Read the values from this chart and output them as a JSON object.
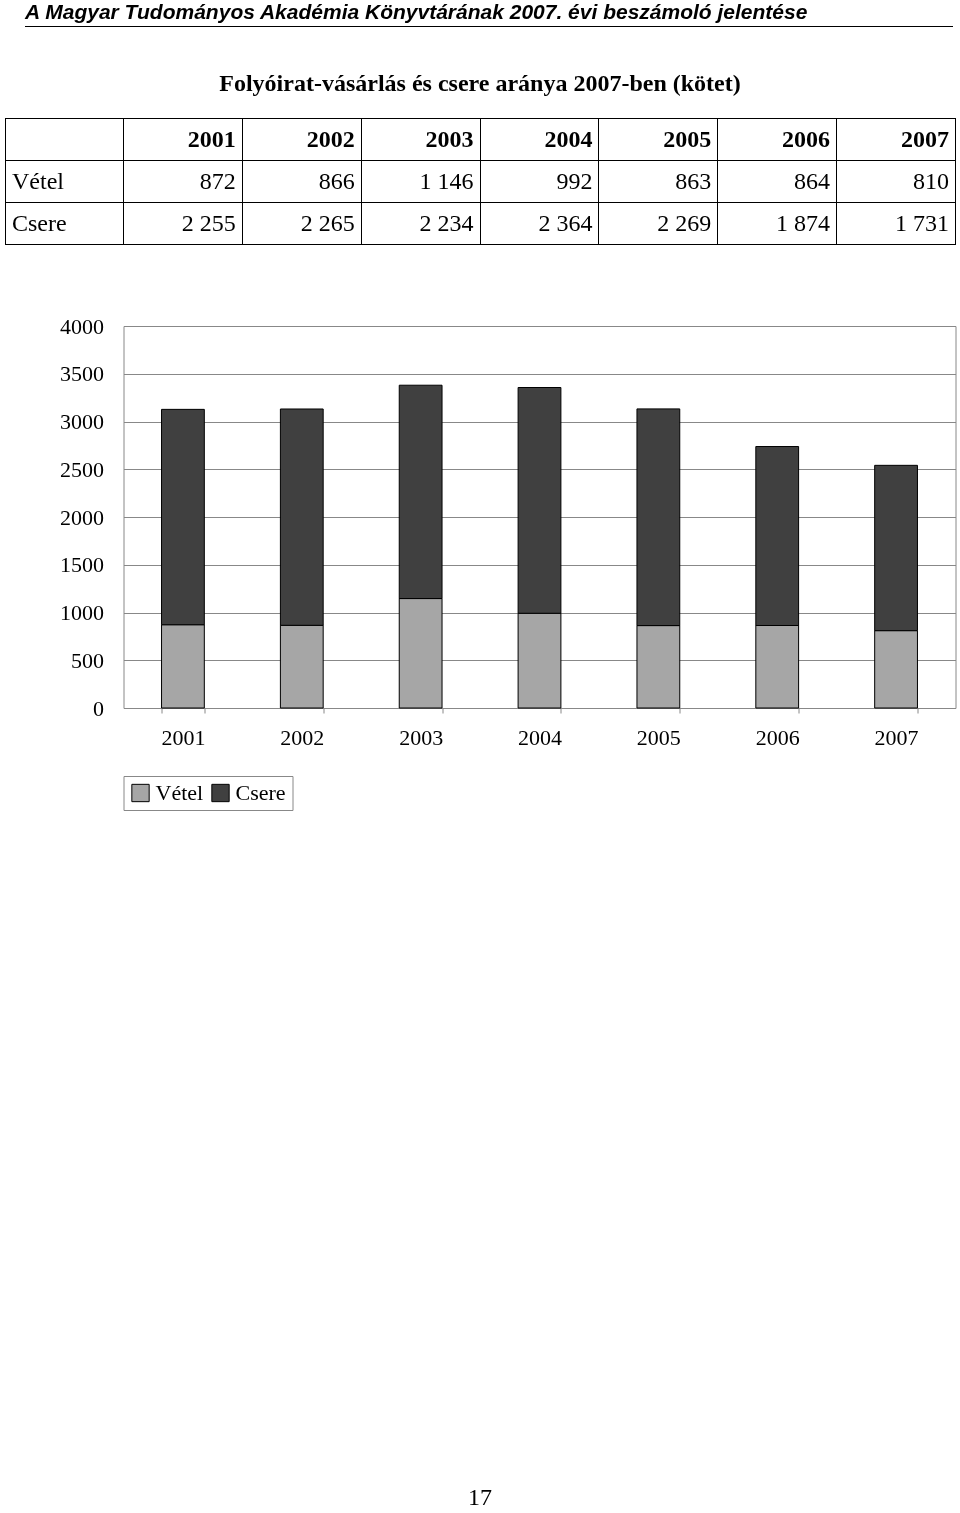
{
  "chart_data": {
    "type": "bar",
    "title": "Folyóirat-vásárlás és csere aránya 2007-ben (kötet)",
    "annotations": [
      "A Magyar Tudományos Akadémia Könyvtárának 2007. évi beszámoló jelentése",
      "17"
    ],
    "categories": [
      "2001",
      "2002",
      "2003",
      "2004",
      "2005",
      "2006",
      "2007"
    ],
    "stacked": true,
    "series": [
      {
        "name": "Vétel",
        "color": "#a6a6a6",
        "values": [
          872,
          866,
          1146,
          992,
          863,
          864,
          810
        ],
        "value_labels": [
          "872",
          "866",
          "1 146",
          "992",
          "863",
          "864",
          "810"
        ]
      },
      {
        "name": "Csere",
        "color": "#404040",
        "values": [
          2255,
          2265,
          2234,
          2364,
          2269,
          1874,
          1731
        ],
        "value_labels": [
          "2 255",
          "2 265",
          "2 234",
          "2 364",
          "2 269",
          "1 874",
          "1 731"
        ]
      }
    ],
    "ylim": [
      0,
      4000
    ],
    "yticks": [
      0,
      500,
      1000,
      1500,
      2000,
      2500,
      3000,
      3500,
      4000
    ],
    "grid": "y",
    "legend": "bottom"
  }
}
